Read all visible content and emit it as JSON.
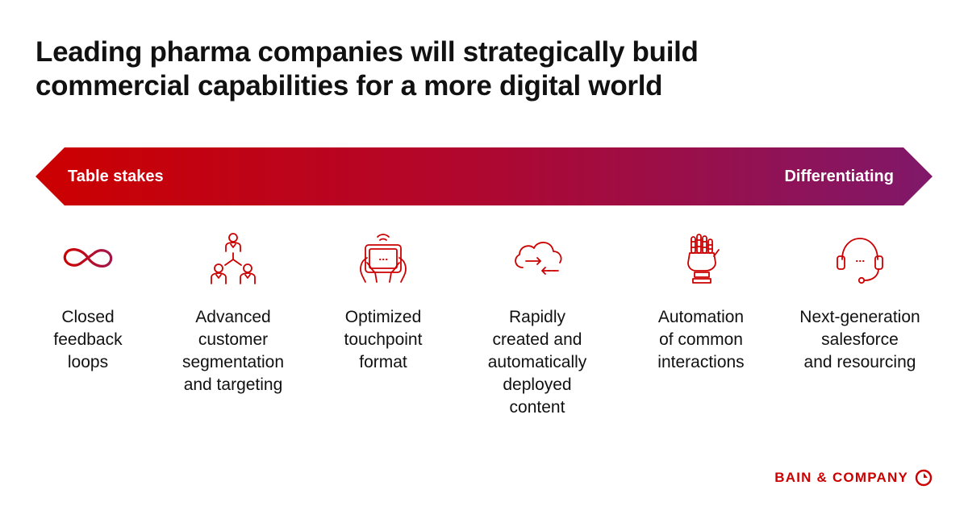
{
  "title": {
    "lines": [
      "Leading pharma companies will strategically build",
      "commercial capabilities for a more digital world"
    ]
  },
  "arrow": {
    "left_label": "Table stakes",
    "right_label": "Differentiating",
    "color_start": "#cc0000",
    "color_end": "#80186a"
  },
  "items": [
    {
      "icon": "infinity-icon",
      "lines": [
        "Closed",
        "feedback",
        "loops"
      ]
    },
    {
      "icon": "org-chart-icon",
      "lines": [
        "Advanced",
        "customer",
        "segmentation",
        "and targeting"
      ]
    },
    {
      "icon": "tablet-hands-icon",
      "lines": [
        "Optimized",
        "touchpoint",
        "format"
      ]
    },
    {
      "icon": "cloud-sync-icon",
      "lines": [
        "Rapidly",
        "created and",
        "automatically",
        "deployed",
        "content"
      ]
    },
    {
      "icon": "robot-hand-icon",
      "lines": [
        "Automation",
        "of common",
        "interactions"
      ]
    },
    {
      "icon": "headset-icon",
      "lines": [
        "Next-generation",
        "salesforce",
        "and resourcing"
      ]
    }
  ],
  "brand": {
    "name": "BAIN & COMPANY",
    "color": "#cc0000"
  }
}
